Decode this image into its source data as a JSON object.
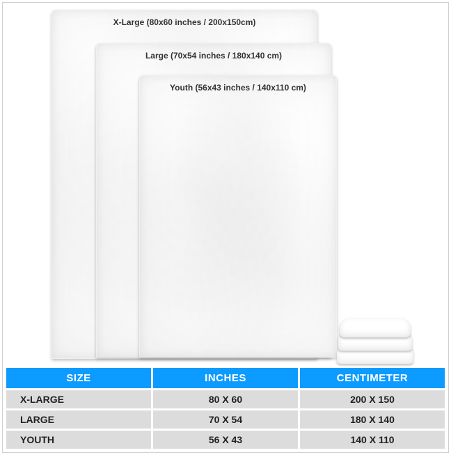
{
  "blankets": {
    "xlarge": {
      "label": "X-Large (80x60 inches / 200x150cm)"
    },
    "large": {
      "label": "Large (70x54 inches / 180x140 cm)"
    },
    "youth": {
      "label": "Youth (56x43 inches / 140x110 cm)"
    }
  },
  "table": {
    "header_bg": "#0d9bff",
    "header_fg": "#ffffff",
    "cell_bg": "#dcdcdc",
    "cell_fg": "#222222",
    "columns": [
      "SIZE",
      "INCHES",
      "CENTIMETER"
    ],
    "rows": [
      {
        "size": "X-LARGE",
        "inches": "80 X 60",
        "cm": "200 X 150"
      },
      {
        "size": "LARGE",
        "inches": "70 X 54",
        "cm": "180 X 140"
      },
      {
        "size": "YOUTH",
        "inches": "56 X 43",
        "cm": "140 X 110"
      }
    ]
  },
  "style": {
    "page_bg": "#ffffff",
    "frame_border": "#d0d0d0",
    "blanket_fill": "#ffffff",
    "label_color": "#333333",
    "font_family": "Arial"
  }
}
